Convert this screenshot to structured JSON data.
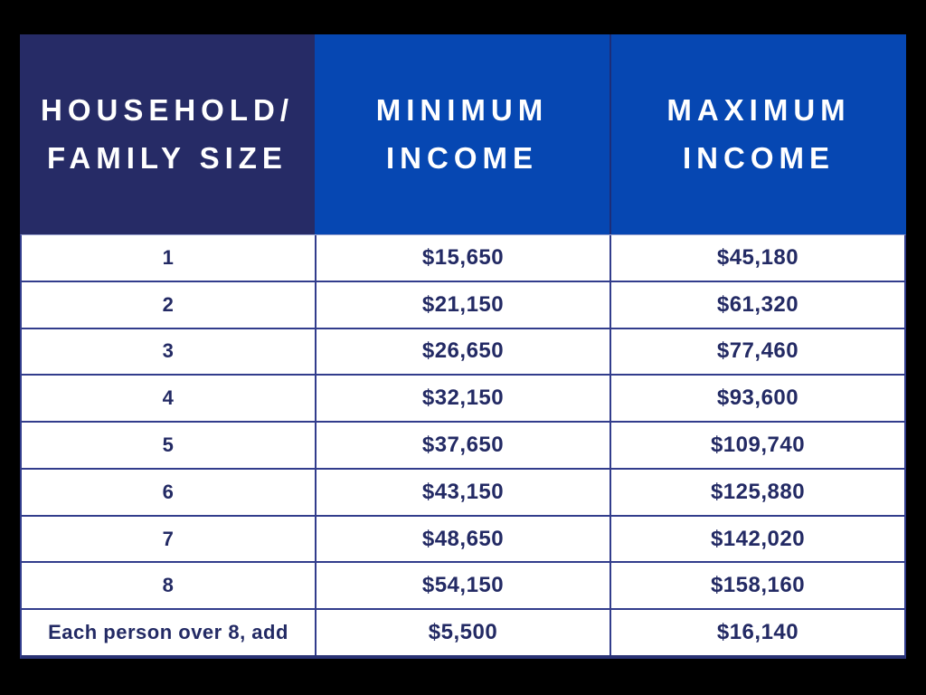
{
  "colors": {
    "background": "#000000",
    "header_primary": "#262b66",
    "header_accent": "#0647b2",
    "header_text": "#ffffff",
    "body_text": "#232a64",
    "grid_line": "#323d8c",
    "cell_background": "#ffffff"
  },
  "table": {
    "columns": [
      {
        "id": "size",
        "line1": "HOUSEHOLD/",
        "line2": "FAMILY SIZE"
      },
      {
        "id": "min",
        "line1": "MINIMUM",
        "line2": "INCOME"
      },
      {
        "id": "max",
        "line1": "MAXIMUM",
        "line2": "INCOME"
      }
    ],
    "rows": [
      {
        "size": "1",
        "min": "$15,650",
        "max": "$45,180"
      },
      {
        "size": "2",
        "min": "$21,150",
        "max": "$61,320"
      },
      {
        "size": "3",
        "min": "$26,650",
        "max": "$77,460"
      },
      {
        "size": "4",
        "min": "$32,150",
        "max": "$93,600"
      },
      {
        "size": "5",
        "min": "$37,650",
        "max": "$109,740"
      },
      {
        "size": "6",
        "min": "$43,150",
        "max": "$125,880"
      },
      {
        "size": "7",
        "min": "$48,650",
        "max": "$142,020"
      },
      {
        "size": "8",
        "min": "$54,150",
        "max": "$158,160"
      },
      {
        "size": "Each person over 8, add",
        "min": "$5,500",
        "max": "$16,140"
      }
    ]
  },
  "chart_data": {
    "type": "table",
    "columns": [
      "Household/ Family Size",
      "Minimum Income",
      "Maximum Income"
    ],
    "rows": [
      [
        "1",
        15650,
        45180
      ],
      [
        "2",
        21150,
        61320
      ],
      [
        "3",
        26650,
        77460
      ],
      [
        "4",
        32150,
        93600
      ],
      [
        "5",
        37650,
        109740
      ],
      [
        "6",
        43150,
        125880
      ],
      [
        "7",
        48650,
        142020
      ],
      [
        "8",
        54150,
        158160
      ],
      [
        "Each person over 8, add",
        5500,
        16140
      ]
    ]
  }
}
